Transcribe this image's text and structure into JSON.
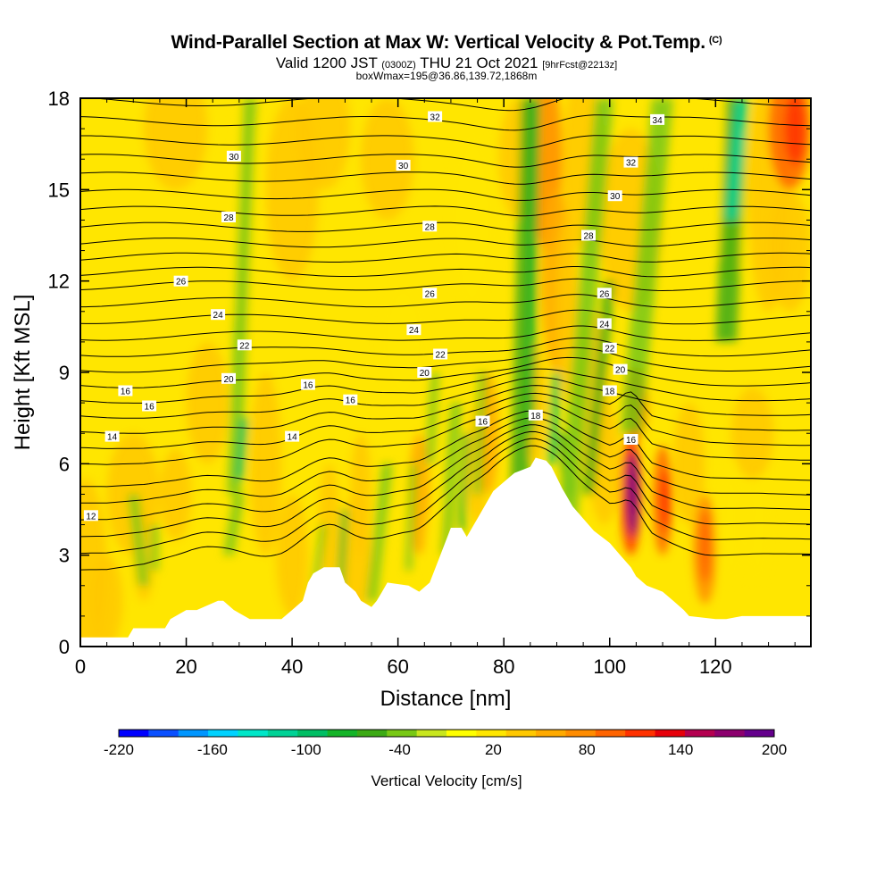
{
  "title": {
    "main": "Wind-Parallel Section at Max W: Vertical Velocity & Pot.Temp.",
    "copyright": "(C)",
    "valid_a": "Valid 1200 JST ",
    "valid_b": "(0300Z)",
    "valid_c": " THU 21 Oct 2021 ",
    "valid_d": "[9hrFcst@2213z]",
    "box": "boxWmax=195@36.86,139.72,1868m"
  },
  "chart_data": {
    "type": "heatmap",
    "xlabel": "Distance [nm]",
    "ylabel": "Height [Kft MSL]",
    "xlim": [
      0,
      138
    ],
    "ylim": [
      0,
      18
    ],
    "xticks": [
      0,
      20,
      40,
      60,
      80,
      100,
      120
    ],
    "yticks": [
      0,
      3,
      6,
      9,
      12,
      15,
      18
    ],
    "colorbar": {
      "label": "Vertical Velocity [cm/s]",
      "tick_labels": [
        "-220",
        "-160",
        "-100",
        "-40",
        "20",
        "80",
        "140",
        "200"
      ],
      "tick_values": [
        -220,
        -160,
        -100,
        -40,
        20,
        80,
        140,
        200
      ],
      "min": -220,
      "max": 200,
      "colors": [
        "#0000ff",
        "#0a50ff",
        "#0096ff",
        "#00d2ff",
        "#00e6c8",
        "#00d296",
        "#00be64",
        "#14b428",
        "#3caa14",
        "#78c814",
        "#c8e61e",
        "#ffff00",
        "#ffe600",
        "#ffc800",
        "#ffaa00",
        "#ff8c00",
        "#ff6400",
        "#ff3200",
        "#e6000a",
        "#b40050",
        "#8c006e",
        "#64008c"
      ]
    },
    "terrain": [
      [
        0,
        0.3
      ],
      [
        4,
        0.3
      ],
      [
        9,
        0.3
      ],
      [
        10,
        0.6
      ],
      [
        16,
        0.6
      ],
      [
        17,
        0.9
      ],
      [
        20,
        1.2
      ],
      [
        22,
        1.2
      ],
      [
        26,
        1.5
      ],
      [
        27,
        1.5
      ],
      [
        29,
        1.2
      ],
      [
        32,
        0.9
      ],
      [
        38,
        0.9
      ],
      [
        40,
        1.2
      ],
      [
        42,
        1.5
      ],
      [
        43,
        2.1
      ],
      [
        44,
        2.4
      ],
      [
        46,
        2.6
      ],
      [
        49,
        2.6
      ],
      [
        50,
        2.1
      ],
      [
        52,
        1.8
      ],
      [
        53,
        1.5
      ],
      [
        55,
        1.3
      ],
      [
        56,
        1.5
      ],
      [
        57,
        1.8
      ],
      [
        58,
        2.1
      ],
      [
        62,
        2.0
      ],
      [
        64,
        1.8
      ],
      [
        66,
        2.1
      ],
      [
        68,
        3.0
      ],
      [
        70,
        3.9
      ],
      [
        72,
        3.9
      ],
      [
        73,
        3.6
      ],
      [
        75,
        4.2
      ],
      [
        78,
        5.1
      ],
      [
        80,
        5.4
      ],
      [
        82,
        5.7
      ],
      [
        85,
        5.9
      ],
      [
        86,
        6.2
      ],
      [
        88,
        6.1
      ],
      [
        89,
        5.9
      ],
      [
        91,
        5.2
      ],
      [
        93,
        4.6
      ],
      [
        95,
        4.2
      ],
      [
        97,
        3.8
      ],
      [
        100,
        3.4
      ],
      [
        102,
        3.0
      ],
      [
        104,
        2.6
      ],
      [
        105,
        2.3
      ],
      [
        107,
        2.0
      ],
      [
        110,
        1.8
      ],
      [
        112,
        1.5
      ],
      [
        114,
        1.2
      ],
      [
        115,
        1.0
      ],
      [
        120,
        0.9
      ],
      [
        122,
        0.9
      ],
      [
        125,
        1.0
      ],
      [
        138,
        1.0
      ]
    ],
    "theta_labels": [
      {
        "x": 2,
        "y": 4.3,
        "text": "12"
      },
      {
        "x": 6,
        "y": 6.9,
        "text": "14"
      },
      {
        "x": 40,
        "y": 6.9,
        "text": "14"
      },
      {
        "x": 13,
        "y": 7.9,
        "text": "16"
      },
      {
        "x": 8.5,
        "y": 8.4,
        "text": "16"
      },
      {
        "x": 43,
        "y": 8.6,
        "text": "16"
      },
      {
        "x": 51,
        "y": 8.1,
        "text": "16"
      },
      {
        "x": 76,
        "y": 7.4,
        "text": "16"
      },
      {
        "x": 104,
        "y": 6.8,
        "text": "16"
      },
      {
        "x": 86,
        "y": 7.6,
        "text": "18"
      },
      {
        "x": 100,
        "y": 8.4,
        "text": "18"
      },
      {
        "x": 28,
        "y": 8.8,
        "text": "20"
      },
      {
        "x": 65,
        "y": 9.0,
        "text": "20"
      },
      {
        "x": 102,
        "y": 9.1,
        "text": "20"
      },
      {
        "x": 31,
        "y": 9.9,
        "text": "22"
      },
      {
        "x": 68,
        "y": 9.6,
        "text": "22"
      },
      {
        "x": 100,
        "y": 9.8,
        "text": "22"
      },
      {
        "x": 26,
        "y": 10.9,
        "text": "24"
      },
      {
        "x": 63,
        "y": 10.4,
        "text": "24"
      },
      {
        "x": 99,
        "y": 10.6,
        "text": "24"
      },
      {
        "x": 19,
        "y": 12.0,
        "text": "26"
      },
      {
        "x": 66,
        "y": 11.6,
        "text": "26"
      },
      {
        "x": 99,
        "y": 11.6,
        "text": "26"
      },
      {
        "x": 28,
        "y": 14.1,
        "text": "28"
      },
      {
        "x": 66,
        "y": 13.8,
        "text": "28"
      },
      {
        "x": 96,
        "y": 13.5,
        "text": "28"
      },
      {
        "x": 29,
        "y": 16.1,
        "text": "30"
      },
      {
        "x": 61,
        "y": 15.8,
        "text": "30"
      },
      {
        "x": 101,
        "y": 14.8,
        "text": "30"
      },
      {
        "x": 67,
        "y": 17.4,
        "text": "32"
      },
      {
        "x": 104,
        "y": 15.9,
        "text": "32"
      },
      {
        "x": 109,
        "y": 17.3,
        "text": "34"
      }
    ]
  }
}
